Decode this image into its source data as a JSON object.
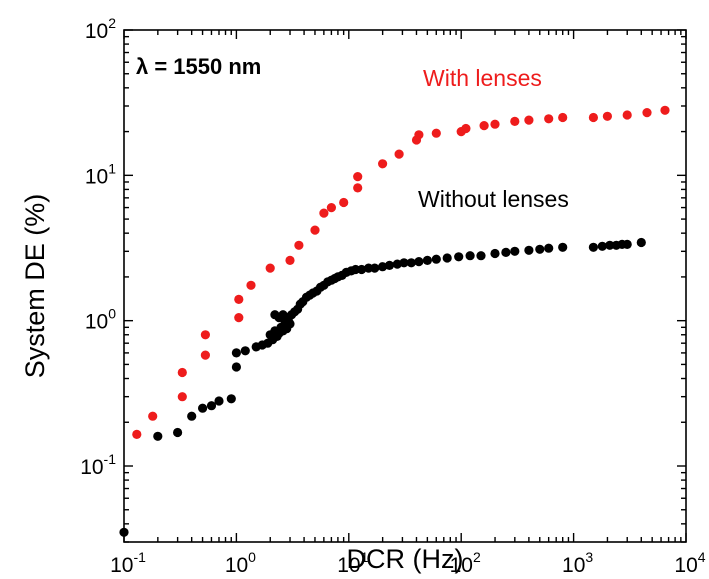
{
  "chart_data": {
    "type": "scatter",
    "xscale": "log",
    "yscale": "log",
    "xlim": [
      0.1,
      10000
    ],
    "ylim": [
      0.03,
      100
    ],
    "xlabel": "DCR (Hz)",
    "ylabel": "System DE (%)",
    "grid": false,
    "x_ticks": [
      {
        "value": 0.1,
        "base": "10",
        "exp": "-1"
      },
      {
        "value": 1,
        "base": "10",
        "exp": "0"
      },
      {
        "value": 10,
        "base": "10",
        "exp": "1"
      },
      {
        "value": 100,
        "base": "10",
        "exp": "2"
      },
      {
        "value": 1000,
        "base": "10",
        "exp": "3"
      },
      {
        "value": 10000,
        "base": "10",
        "exp": "4"
      }
    ],
    "y_ticks": [
      {
        "value": 0.1,
        "base": "10",
        "exp": "-1"
      },
      {
        "value": 1,
        "base": "10",
        "exp": "0"
      },
      {
        "value": 10,
        "base": "10",
        "exp": "1"
      },
      {
        "value": 100,
        "base": "10",
        "exp": "2"
      }
    ],
    "annotations": [
      {
        "text": "λ = 1550 nm",
        "style": "bold"
      },
      {
        "text": "With lenses",
        "style": "red"
      },
      {
        "text": "Without lenses",
        "style": "black"
      }
    ],
    "series": [
      {
        "label": "With lenses",
        "color": "#ee1c1c",
        "points": [
          [
            0.13,
            0.165
          ],
          [
            0.18,
            0.22
          ],
          [
            0.33,
            0.3
          ],
          [
            0.33,
            0.44
          ],
          [
            0.53,
            0.58
          ],
          [
            0.53,
            0.8
          ],
          [
            1.05,
            1.05
          ],
          [
            1.05,
            1.4
          ],
          [
            1.35,
            1.75
          ],
          [
            2.0,
            2.3
          ],
          [
            3.0,
            2.6
          ],
          [
            3.6,
            3.3
          ],
          [
            5.0,
            4.2
          ],
          [
            6.0,
            5.5
          ],
          [
            7.0,
            6.0
          ],
          [
            9.0,
            6.5
          ],
          [
            12.0,
            8.2
          ],
          [
            12.0,
            9.8
          ],
          [
            20.0,
            12.0
          ],
          [
            28.0,
            14.0
          ],
          [
            40.0,
            17.5
          ],
          [
            42.0,
            19.0
          ],
          [
            60.0,
            19.5
          ],
          [
            100.0,
            20.0
          ],
          [
            110.0,
            21.0
          ],
          [
            160.0,
            22.0
          ],
          [
            200.0,
            22.5
          ],
          [
            300.0,
            23.5
          ],
          [
            400.0,
            24.0
          ],
          [
            600.0,
            24.5
          ],
          [
            800.0,
            25.0
          ],
          [
            1500.0,
            25.0
          ],
          [
            2000.0,
            25.5
          ],
          [
            3000.0,
            26.0
          ],
          [
            4500.0,
            27.0
          ],
          [
            6500.0,
            28.0
          ]
        ]
      },
      {
        "label": "Without lenses",
        "color": "#000000",
        "points": [
          [
            0.1,
            0.035
          ],
          [
            0.2,
            0.16
          ],
          [
            0.3,
            0.17
          ],
          [
            0.4,
            0.22
          ],
          [
            0.5,
            0.25
          ],
          [
            0.6,
            0.26
          ],
          [
            0.7,
            0.28
          ],
          [
            0.9,
            0.29
          ],
          [
            1.0,
            0.48
          ],
          [
            1.0,
            0.6
          ],
          [
            1.2,
            0.62
          ],
          [
            1.5,
            0.66
          ],
          [
            1.7,
            0.68
          ],
          [
            1.9,
            0.7
          ],
          [
            2.1,
            0.74
          ],
          [
            2.3,
            0.78
          ],
          [
            2.4,
            0.82
          ],
          [
            2.6,
            0.85
          ],
          [
            2.8,
            0.88
          ],
          [
            3.0,
            0.95
          ],
          [
            2.0,
            0.8
          ],
          [
            2.2,
            0.85
          ],
          [
            2.5,
            0.9
          ],
          [
            2.7,
            0.95
          ],
          [
            2.9,
            1.0
          ],
          [
            2.4,
            1.05
          ],
          [
            2.6,
            1.1
          ],
          [
            2.2,
            1.1
          ],
          [
            2.8,
            1.05
          ],
          [
            3.1,
            1.1
          ],
          [
            3.3,
            1.15
          ],
          [
            3.5,
            1.2
          ],
          [
            3.7,
            1.3
          ],
          [
            3.9,
            1.35
          ],
          [
            4.2,
            1.45
          ],
          [
            4.5,
            1.5
          ],
          [
            4.8,
            1.55
          ],
          [
            5.2,
            1.6
          ],
          [
            5.6,
            1.7
          ],
          [
            6.0,
            1.75
          ],
          [
            6.5,
            1.85
          ],
          [
            7.0,
            1.9
          ],
          [
            7.5,
            1.95
          ],
          [
            8.0,
            2.0
          ],
          [
            8.7,
            2.05
          ],
          [
            9.5,
            2.15
          ],
          [
            10.5,
            2.2
          ],
          [
            11.5,
            2.25
          ],
          [
            13.0,
            2.25
          ],
          [
            15.0,
            2.3
          ],
          [
            17.0,
            2.3
          ],
          [
            20.0,
            2.35
          ],
          [
            23.0,
            2.4
          ],
          [
            27.0,
            2.45
          ],
          [
            31.0,
            2.5
          ],
          [
            36.0,
            2.5
          ],
          [
            42.0,
            2.55
          ],
          [
            50.0,
            2.6
          ],
          [
            60.0,
            2.65
          ],
          [
            75.0,
            2.7
          ],
          [
            95.0,
            2.75
          ],
          [
            120.0,
            2.8
          ],
          [
            150.0,
            2.8
          ],
          [
            200.0,
            2.9
          ],
          [
            250.0,
            2.95
          ],
          [
            300.0,
            3.0
          ],
          [
            400.0,
            3.05
          ],
          [
            500.0,
            3.1
          ],
          [
            600.0,
            3.15
          ],
          [
            800.0,
            3.2
          ],
          [
            1500.0,
            3.2
          ],
          [
            1800.0,
            3.25
          ],
          [
            2100.0,
            3.3
          ],
          [
            2400.0,
            3.3
          ],
          [
            2700.0,
            3.35
          ],
          [
            3000.0,
            3.35
          ],
          [
            4000.0,
            3.45
          ]
        ]
      }
    ]
  }
}
